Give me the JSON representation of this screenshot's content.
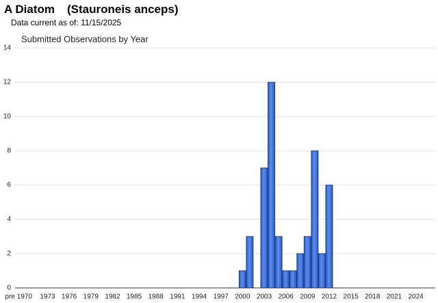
{
  "header": {
    "common_name": "A Diatom",
    "scientific_name": "(Stauroneis anceps)",
    "as_of_label": "Data current as of:",
    "as_of_date": "11/15/2025"
  },
  "chart_data": {
    "type": "bar",
    "title": "Submitted Observations by Year",
    "categories": [
      "pre 1970",
      null,
      null,
      null,
      "1973",
      null,
      null,
      "1976",
      null,
      null,
      "1979",
      null,
      null,
      "1982",
      null,
      null,
      "1985",
      null,
      null,
      "1988",
      null,
      null,
      "1991",
      null,
      null,
      "1994",
      null,
      null,
      "1997",
      null,
      null,
      "2000",
      null,
      null,
      "2003",
      null,
      null,
      "2006",
      null,
      null,
      "2009",
      null,
      null,
      "2012",
      null,
      null,
      "2015",
      null,
      null,
      "2018",
      null,
      null,
      "2021",
      null,
      null,
      "2024",
      null,
      null
    ],
    "values": [
      0,
      0,
      0,
      0,
      0,
      0,
      0,
      0,
      0,
      0,
      0,
      0,
      0,
      0,
      0,
      0,
      0,
      0,
      0,
      0,
      0,
      0,
      0,
      0,
      0,
      0,
      0,
      0,
      0,
      0,
      0,
      1,
      3,
      0,
      7,
      12,
      3,
      1,
      1,
      2,
      3,
      8,
      2,
      6,
      0,
      0,
      0,
      0,
      0,
      0,
      0,
      0,
      0,
      0,
      0,
      0,
      0,
      0
    ],
    "color": "#3b6fd6",
    "ylim": [
      0,
      14
    ],
    "yticks": [
      0,
      2,
      4,
      6,
      8,
      10,
      12,
      14
    ],
    "grid": true
  }
}
